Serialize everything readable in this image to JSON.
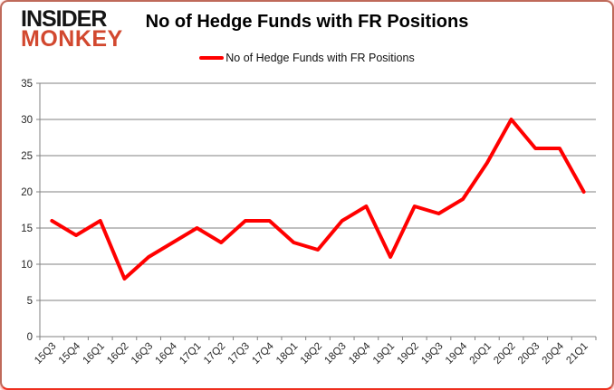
{
  "logo": {
    "line1": "INSIDER",
    "line2": "MONKEY"
  },
  "header": {
    "title": "No of Hedge Funds with FR Positions"
  },
  "legend": {
    "label": "No of Hedge Funds with FR Positions"
  },
  "colors": {
    "series_red": "#ff0000",
    "logo_red": "#d2482f",
    "grid": "#808080",
    "axis_text": "#262626"
  },
  "chart_data": {
    "type": "line",
    "title": "No of Hedge Funds with FR Positions",
    "categories": [
      "15Q3",
      "15Q4",
      "16Q1",
      "16Q2",
      "16Q3",
      "16Q4",
      "17Q1",
      "17Q2",
      "17Q3",
      "17Q4",
      "18Q1",
      "18Q2",
      "18Q3",
      "18Q4",
      "19Q1",
      "19Q2",
      "19Q3",
      "19Q4",
      "20Q1",
      "20Q2",
      "20Q3",
      "20Q4",
      "21Q1"
    ],
    "series": [
      {
        "name": "No of Hedge Funds with FR Positions",
        "color": "#ff0000",
        "values": [
          16,
          14,
          16,
          8,
          11,
          13,
          15,
          13,
          16,
          16,
          13,
          12,
          16,
          18,
          11,
          18,
          17,
          19,
          24,
          30,
          26,
          26,
          20
        ]
      }
    ],
    "ylim": [
      0,
      35
    ],
    "ytick_step": 5,
    "grid": "horizontal",
    "legend_position": "top"
  }
}
